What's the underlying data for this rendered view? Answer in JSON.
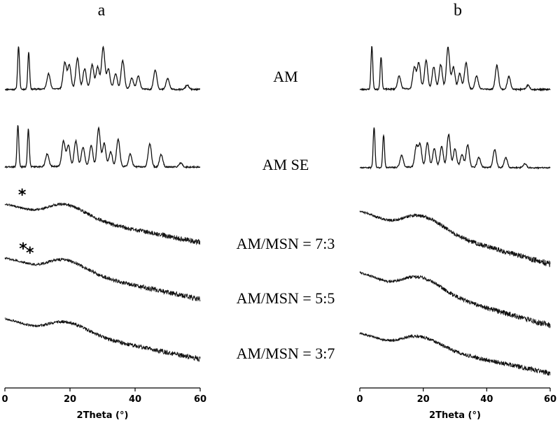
{
  "chart_data": [
    {
      "type": "line",
      "panel": "a",
      "xlabel": "2Theta (°)",
      "ylabel": "",
      "xlim": [
        0,
        60
      ],
      "xticks": [
        "0",
        "20",
        "40",
        "60"
      ],
      "series": [
        {
          "name": "AM",
          "kind": "crystalline",
          "peaks": [
            [
              4.2,
              1.0
            ],
            [
              7.3,
              0.85
            ],
            [
              13.4,
              0.35
            ],
            [
              18.4,
              0.6
            ],
            [
              19.8,
              0.55
            ],
            [
              22.3,
              0.7
            ],
            [
              24.5,
              0.45
            ],
            [
              26.8,
              0.55
            ],
            [
              28.5,
              0.5
            ],
            [
              30.2,
              0.95
            ],
            [
              31.8,
              0.45
            ],
            [
              34.0,
              0.35
            ],
            [
              36.2,
              0.65
            ],
            [
              39.0,
              0.25
            ],
            [
              41.0,
              0.3
            ],
            [
              46.2,
              0.45
            ],
            [
              50.0,
              0.25
            ],
            [
              56.0,
              0.1
            ]
          ]
        },
        {
          "name": "AM SE",
          "kind": "crystalline",
          "peaks": [
            [
              4.0,
              1.0
            ],
            [
              7.2,
              0.9
            ],
            [
              13.0,
              0.3
            ],
            [
              18.0,
              0.6
            ],
            [
              19.5,
              0.5
            ],
            [
              21.8,
              0.6
            ],
            [
              24.0,
              0.45
            ],
            [
              26.5,
              0.5
            ],
            [
              28.8,
              0.9
            ],
            [
              30.5,
              0.55
            ],
            [
              32.5,
              0.35
            ],
            [
              34.8,
              0.65
            ],
            [
              38.5,
              0.3
            ],
            [
              44.5,
              0.55
            ],
            [
              48.0,
              0.3
            ],
            [
              54.0,
              0.1
            ]
          ]
        },
        {
          "name": "AM/MSN = 7:3",
          "kind": "amorphous",
          "hump_center": 18.5,
          "markers": [
            {
              "label": "*",
              "x": 5.3
            }
          ]
        },
        {
          "name": "AM/MSN = 5:5",
          "kind": "amorphous",
          "hump_center": 18.5,
          "markers": [
            {
              "label": "*",
              "x": 5.6
            },
            {
              "label": "*",
              "x": 7.7
            }
          ]
        },
        {
          "name": "AM/MSN = 3:7",
          "kind": "amorphous",
          "hump_center": 19.0,
          "markers": []
        }
      ]
    },
    {
      "type": "line",
      "panel": "b",
      "xlabel": "2Theta (°)",
      "ylabel": "",
      "xlim": [
        0,
        60
      ],
      "xticks": [
        "0",
        "20",
        "40",
        "60"
      ],
      "series": [
        {
          "name": "AM",
          "kind": "crystalline",
          "peaks": [
            [
              3.8,
              1.0
            ],
            [
              6.7,
              0.75
            ],
            [
              12.4,
              0.3
            ],
            [
              17.2,
              0.5
            ],
            [
              18.6,
              0.6
            ],
            [
              20.9,
              0.65
            ],
            [
              23.3,
              0.5
            ],
            [
              25.5,
              0.55
            ],
            [
              27.8,
              0.95
            ],
            [
              29.5,
              0.5
            ],
            [
              31.5,
              0.35
            ],
            [
              33.5,
              0.6
            ],
            [
              36.8,
              0.3
            ],
            [
              43.2,
              0.55
            ],
            [
              47.0,
              0.3
            ],
            [
              53.0,
              0.1
            ]
          ]
        },
        {
          "name": "AM SE",
          "kind": "crystalline",
          "peaks": [
            [
              4.5,
              1.0
            ],
            [
              7.5,
              0.8
            ],
            [
              13.2,
              0.3
            ],
            [
              17.8,
              0.5
            ],
            [
              19.0,
              0.55
            ],
            [
              21.3,
              0.6
            ],
            [
              23.5,
              0.45
            ],
            [
              25.8,
              0.5
            ],
            [
              28.0,
              0.8
            ],
            [
              30.0,
              0.45
            ],
            [
              32.2,
              0.3
            ],
            [
              34.0,
              0.55
            ],
            [
              37.5,
              0.25
            ],
            [
              42.5,
              0.45
            ],
            [
              46.0,
              0.25
            ],
            [
              52.0,
              0.1
            ]
          ]
        },
        {
          "name": "AM/MSN = 7:3",
          "kind": "amorphous",
          "hump_center": 20.0,
          "markers": []
        },
        {
          "name": "AM/MSN = 5:5",
          "kind": "amorphous",
          "hump_center": 19.5,
          "markers": []
        },
        {
          "name": "AM/MSN = 3:7",
          "kind": "amorphous",
          "hump_center": 19.0,
          "markers": []
        }
      ]
    }
  ]
}
